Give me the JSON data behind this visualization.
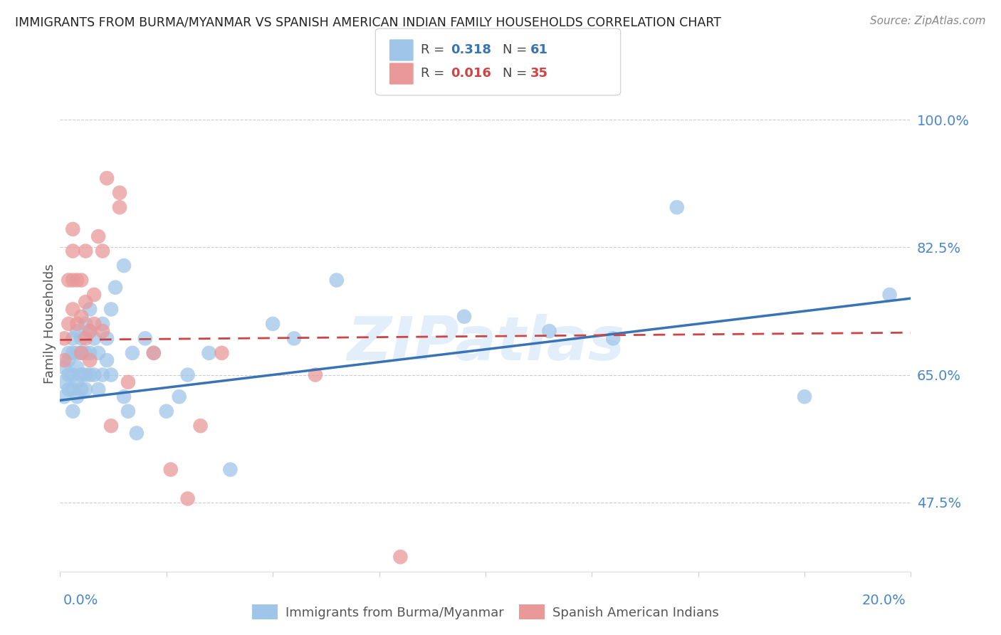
{
  "title": "IMMIGRANTS FROM BURMA/MYANMAR VS SPANISH AMERICAN INDIAN FAMILY HOUSEHOLDS CORRELATION CHART",
  "source": "Source: ZipAtlas.com",
  "ylabel": "Family Households",
  "ytick_labels": [
    "47.5%",
    "65.0%",
    "82.5%",
    "100.0%"
  ],
  "ytick_values": [
    0.475,
    0.65,
    0.825,
    1.0
  ],
  "blue_color": "#9fc5e8",
  "pink_color": "#ea9999",
  "blue_line_color": "#3873b5",
  "pink_line_color": "#cc4444",
  "watermark": "ZIPatlas",
  "xlim": [
    0.0,
    0.2
  ],
  "ylim": [
    0.38,
    1.06
  ],
  "blue_scatter_x": [
    0.001,
    0.001,
    0.001,
    0.002,
    0.002,
    0.002,
    0.002,
    0.003,
    0.003,
    0.003,
    0.003,
    0.003,
    0.004,
    0.004,
    0.004,
    0.004,
    0.004,
    0.005,
    0.005,
    0.005,
    0.005,
    0.006,
    0.006,
    0.006,
    0.006,
    0.007,
    0.007,
    0.007,
    0.007,
    0.008,
    0.008,
    0.009,
    0.009,
    0.01,
    0.01,
    0.011,
    0.011,
    0.012,
    0.012,
    0.013,
    0.015,
    0.015,
    0.016,
    0.017,
    0.018,
    0.02,
    0.022,
    0.025,
    0.028,
    0.03,
    0.035,
    0.04,
    0.05,
    0.055,
    0.065,
    0.095,
    0.115,
    0.13,
    0.145,
    0.175,
    0.195
  ],
  "blue_scatter_y": [
    0.62,
    0.64,
    0.66,
    0.63,
    0.65,
    0.67,
    0.68,
    0.6,
    0.63,
    0.65,
    0.68,
    0.7,
    0.62,
    0.64,
    0.66,
    0.68,
    0.71,
    0.63,
    0.65,
    0.68,
    0.7,
    0.63,
    0.65,
    0.68,
    0.72,
    0.65,
    0.68,
    0.71,
    0.74,
    0.65,
    0.7,
    0.63,
    0.68,
    0.72,
    0.65,
    0.67,
    0.7,
    0.65,
    0.74,
    0.77,
    0.8,
    0.62,
    0.6,
    0.68,
    0.57,
    0.7,
    0.68,
    0.6,
    0.62,
    0.65,
    0.68,
    0.52,
    0.72,
    0.7,
    0.78,
    0.73,
    0.71,
    0.7,
    0.88,
    0.62,
    0.76
  ],
  "pink_scatter_x": [
    0.001,
    0.001,
    0.002,
    0.002,
    0.003,
    0.003,
    0.003,
    0.003,
    0.004,
    0.004,
    0.005,
    0.005,
    0.005,
    0.006,
    0.006,
    0.006,
    0.007,
    0.007,
    0.008,
    0.008,
    0.009,
    0.01,
    0.01,
    0.011,
    0.012,
    0.014,
    0.014,
    0.016,
    0.022,
    0.026,
    0.03,
    0.033,
    0.038,
    0.06,
    0.08
  ],
  "pink_scatter_y": [
    0.67,
    0.7,
    0.72,
    0.78,
    0.74,
    0.78,
    0.82,
    0.85,
    0.72,
    0.78,
    0.68,
    0.73,
    0.78,
    0.7,
    0.75,
    0.82,
    0.67,
    0.71,
    0.72,
    0.76,
    0.84,
    0.82,
    0.71,
    0.92,
    0.58,
    0.88,
    0.9,
    0.64,
    0.68,
    0.52,
    0.48,
    0.58,
    0.68,
    0.65,
    0.4
  ],
  "blue_line_x": [
    0.0,
    0.2
  ],
  "blue_line_y": [
    0.615,
    0.755
  ],
  "pink_line_x": [
    0.0,
    0.2
  ],
  "pink_line_y": [
    0.698,
    0.708
  ]
}
